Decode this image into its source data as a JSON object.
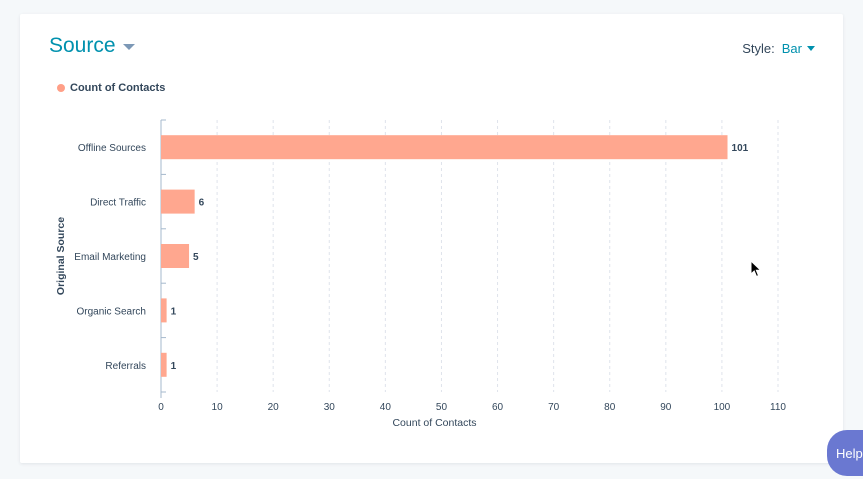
{
  "header": {
    "title": "Source",
    "style_label": "Style:",
    "style_value": "Bar"
  },
  "legend": {
    "label": "Count of Contacts",
    "color": "#ff9f87"
  },
  "help": {
    "label": "Help"
  },
  "colors": {
    "bar": "#ffa78f",
    "accent": "#0091ae",
    "text": "#33475b",
    "axis": "#a5b8cc",
    "grid": "#dfe3eb"
  },
  "chart_data": {
    "type": "bar",
    "orientation": "horizontal",
    "categories": [
      "Offline Sources",
      "Direct Traffic",
      "Email Marketing",
      "Organic Search",
      "Referrals"
    ],
    "series": [
      {
        "name": "Count of Contacts",
        "values": [
          101,
          6,
          5,
          1,
          1
        ]
      }
    ],
    "xlabel": "Count of Contacts",
    "ylabel": "Original Source",
    "xlim": [
      0,
      110
    ],
    "xticks": [
      0,
      10,
      20,
      30,
      40,
      50,
      60,
      70,
      80,
      90,
      100,
      110
    ],
    "grid": true,
    "legend_position": "top-left",
    "data_labels": true
  }
}
